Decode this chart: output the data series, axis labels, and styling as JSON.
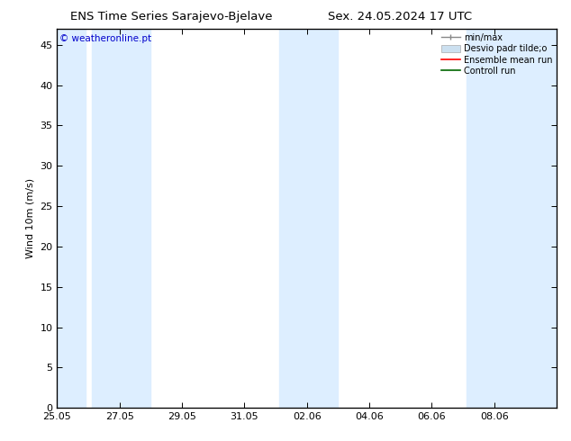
{
  "title_left": "ENS Time Series Sarajevo-Bjelave",
  "title_right": "Sex. 24.05.2024 17 UTC",
  "ylabel": "Wind 10m (m/s)",
  "watermark": "© weatheronline.pt",
  "xlim_start": 0,
  "xlim_end": 16,
  "ylim": [
    0,
    47
  ],
  "yticks": [
    0,
    5,
    10,
    15,
    20,
    25,
    30,
    35,
    40,
    45
  ],
  "xtick_labels": [
    "25.05",
    "27.05",
    "29.05",
    "31.05",
    "02.06",
    "04.06",
    "06.06",
    "08.06"
  ],
  "xtick_positions": [
    0,
    2,
    4,
    6,
    8,
    10,
    12,
    14
  ],
  "shaded_bands": [
    [
      0.0,
      0.9
    ],
    [
      1.1,
      3.0
    ],
    [
      7.1,
      9.0
    ],
    [
      13.1,
      16.0
    ]
  ],
  "band_color": "#ddeeff",
  "bg_color": "#ffffff",
  "title_fontsize": 9.5,
  "watermark_color": "#0000cc",
  "legend_labels": [
    "min/max",
    "Desvio padr tilde;o",
    "Ensemble mean run",
    "Controll run"
  ],
  "legend_line_color": "#888888",
  "legend_patch_color": "#cce0f0",
  "legend_red": "#ff0000",
  "legend_green": "#006600"
}
